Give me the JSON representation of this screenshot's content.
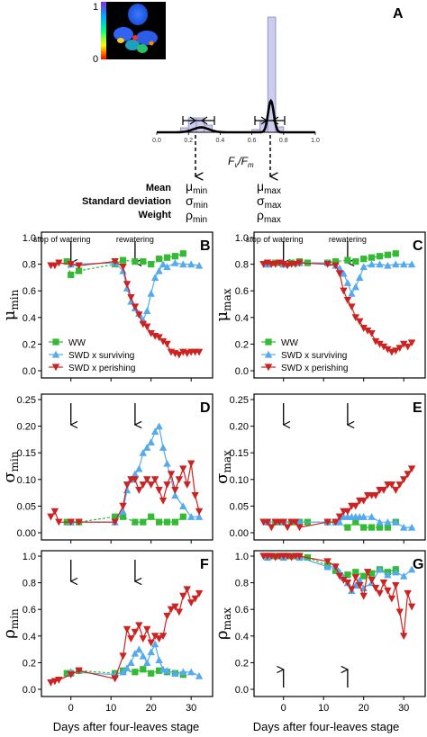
{
  "panel_a": {
    "letter": "A",
    "colorbar_top": "1",
    "colorbar_bottom": "0",
    "x_ticks": [
      "0.0",
      "0.2",
      "0.4",
      "0.6",
      "0.8",
      "1.0"
    ],
    "xlabel_main": "F",
    "xlabel_sub1": "v",
    "xlabel_slash": "/F",
    "xlabel_sub2": "m",
    "stats_left": [
      "Mean",
      "Standard deviation",
      "Weight"
    ],
    "mu_min": "μ",
    "mu_min_sub": "min",
    "sigma_min": "σ",
    "sigma_min_sub": "min",
    "rho_min": "ρ",
    "rho_min_sub": "min",
    "mu_max": "μ",
    "mu_max_sub": "max",
    "sigma_max": "σ",
    "sigma_max_sub": "max",
    "rho_max": "ρ",
    "rho_max_sub": "max"
  },
  "legend": {
    "ww": "WW",
    "surv": "SWD x surviving",
    "per": "SWD x perishing"
  },
  "annotations": {
    "stop": "stop of watering",
    "rewater": "rewatering"
  },
  "xlabel": "Days after four-leaves stage",
  "x_ticks": [
    "0",
    "10",
    "20",
    "30"
  ],
  "colors": {
    "ww": "#33bb33",
    "surv": "#55aaee",
    "per": "#cc2222",
    "hist": "#ccccee"
  },
  "chart_data": [
    {
      "type": "line",
      "panel": "B",
      "ylabel": "μ",
      "ylabel_sub": "min",
      "ylim": [
        0.0,
        1.0
      ],
      "y_ticks": [
        "0.0",
        "0.2",
        "0.4",
        "0.6",
        "0.8",
        "1.0"
      ],
      "xlim": [
        -6,
        34
      ],
      "series": [
        {
          "name": "WW",
          "x": [
            -1,
            0,
            2,
            11,
            13,
            16,
            18,
            20,
            22,
            24,
            26,
            28
          ],
          "y": [
            0.82,
            0.72,
            0.75,
            0.8,
            0.83,
            0.82,
            0.82,
            0.8,
            0.84,
            0.85,
            0.86,
            0.88
          ]
        },
        {
          "name": "SWD x surviving",
          "x": [
            0,
            11,
            13,
            14,
            15,
            16,
            17,
            18,
            19,
            20,
            21,
            22,
            23,
            24,
            26,
            28,
            30,
            32
          ],
          "y": [
            0.8,
            0.81,
            0.75,
            0.62,
            0.52,
            0.47,
            0.43,
            0.38,
            0.45,
            0.58,
            0.7,
            0.75,
            0.8,
            0.78,
            0.81,
            0.8,
            0.8,
            0.79
          ]
        },
        {
          "name": "SWD x perishing",
          "x": [
            -5,
            -4,
            -3,
            0,
            2,
            11,
            13,
            14,
            15,
            16,
            17,
            18,
            19,
            20,
            21,
            22,
            23,
            24,
            25,
            26,
            27,
            28,
            29,
            30,
            31,
            32
          ],
          "y": [
            0.79,
            0.79,
            0.81,
            0.8,
            0.79,
            0.82,
            0.78,
            0.65,
            0.55,
            0.48,
            0.42,
            0.35,
            0.33,
            0.28,
            0.26,
            0.25,
            0.22,
            0.2,
            0.14,
            0.13,
            0.12,
            0.14,
            0.13,
            0.14,
            0.14,
            0.14
          ]
        }
      ]
    },
    {
      "type": "line",
      "panel": "C",
      "ylabel": "μ",
      "ylabel_sub": "max",
      "ylim": [
        0.0,
        1.0
      ],
      "y_ticks": [
        "0.0",
        "0.2",
        "0.4",
        "0.6",
        "0.8",
        "1.0"
      ],
      "xlim": [
        -6,
        34
      ],
      "series": [
        {
          "name": "WW",
          "x": [
            -4,
            -2,
            0,
            2,
            4,
            6,
            11,
            13,
            16,
            18,
            20,
            22,
            24,
            26,
            28
          ],
          "y": [
            0.8,
            0.81,
            0.8,
            0.81,
            0.82,
            0.81,
            0.81,
            0.82,
            0.83,
            0.82,
            0.84,
            0.85,
            0.86,
            0.87,
            0.88
          ]
        },
        {
          "name": "SWD x surviving",
          "x": [
            -4,
            0,
            4,
            11,
            13,
            14,
            15,
            16,
            17,
            18,
            19,
            20,
            22,
            24,
            26,
            28,
            30,
            32
          ],
          "y": [
            0.8,
            0.8,
            0.81,
            0.81,
            0.79,
            0.77,
            0.73,
            0.66,
            0.58,
            0.63,
            0.7,
            0.78,
            0.8,
            0.8,
            0.79,
            0.8,
            0.8,
            0.8
          ]
        },
        {
          "name": "SWD x perishing",
          "x": [
            -5,
            -4,
            -3,
            -2,
            -1,
            0,
            1,
            2,
            3,
            4,
            11,
            13,
            14,
            15,
            16,
            17,
            18,
            19,
            20,
            21,
            22,
            23,
            24,
            25,
            26,
            27,
            28,
            29,
            30,
            31,
            32
          ],
          "y": [
            0.8,
            0.81,
            0.8,
            0.8,
            0.81,
            0.8,
            0.79,
            0.8,
            0.8,
            0.81,
            0.8,
            0.79,
            0.73,
            0.6,
            0.53,
            0.48,
            0.4,
            0.37,
            0.32,
            0.3,
            0.28,
            0.22,
            0.2,
            0.18,
            0.16,
            0.14,
            0.15,
            0.17,
            0.2,
            0.18,
            0.21
          ]
        }
      ]
    },
    {
      "type": "line",
      "panel": "D",
      "ylabel": "σ",
      "ylabel_sub": "min",
      "ylim": [
        0.0,
        0.25
      ],
      "y_ticks": [
        "0.00",
        "0.05",
        "0.10",
        "0.15",
        "0.20",
        "0.25"
      ],
      "xlim": [
        -6,
        34
      ],
      "series": [
        {
          "name": "WW",
          "x": [
            -1,
            0,
            2,
            11,
            13,
            16,
            18,
            20,
            22,
            24,
            26,
            28
          ],
          "y": [
            0.02,
            0.02,
            0.02,
            0.03,
            0.03,
            0.02,
            0.02,
            0.03,
            0.02,
            0.02,
            0.02,
            0.03
          ]
        },
        {
          "name": "SWD x surviving",
          "x": [
            0,
            11,
            13,
            14,
            15,
            16,
            17,
            18,
            19,
            20,
            21,
            22,
            23,
            24,
            26,
            28,
            30,
            32
          ],
          "y": [
            0.02,
            0.02,
            0.04,
            0.08,
            0.1,
            0.11,
            0.12,
            0.15,
            0.16,
            0.17,
            0.19,
            0.2,
            0.16,
            0.13,
            0.07,
            0.05,
            0.03,
            0.03
          ]
        },
        {
          "name": "SWD x perishing",
          "x": [
            -5,
            -4,
            -3,
            0,
            2,
            11,
            13,
            14,
            15,
            16,
            17,
            18,
            19,
            20,
            21,
            22,
            23,
            24,
            25,
            26,
            27,
            28,
            29,
            30,
            31,
            32
          ],
          "y": [
            0.03,
            0.04,
            0.02,
            0.02,
            0.02,
            0.02,
            0.05,
            0.09,
            0.1,
            0.1,
            0.08,
            0.09,
            0.1,
            0.09,
            0.1,
            0.08,
            0.06,
            0.09,
            0.11,
            0.08,
            0.1,
            0.12,
            0.09,
            0.13,
            0.07,
            0.04
          ]
        }
      ]
    },
    {
      "type": "line",
      "panel": "E",
      "ylabel": "σ",
      "ylabel_sub": "max",
      "ylim": [
        0.0,
        0.25
      ],
      "y_ticks": [
        "0.00",
        "0.05",
        "0.10",
        "0.15",
        "0.20",
        "0.25"
      ],
      "xlim": [
        -6,
        34
      ],
      "series": [
        {
          "name": "WW",
          "x": [
            -4,
            -2,
            0,
            2,
            4,
            6,
            11,
            13,
            16,
            18,
            20,
            22,
            24,
            26,
            28
          ],
          "y": [
            0.02,
            0.02,
            0.02,
            0.02,
            0.02,
            0.02,
            0.02,
            0.02,
            0.01,
            0.02,
            0.01,
            0.01,
            0.01,
            0.01,
            0.02
          ]
        },
        {
          "name": "SWD x surviving",
          "x": [
            -4,
            0,
            4,
            11,
            13,
            14,
            15,
            16,
            17,
            18,
            19,
            20,
            22,
            24,
            26,
            28,
            30,
            32
          ],
          "y": [
            0.02,
            0.02,
            0.02,
            0.02,
            0.02,
            0.02,
            0.03,
            0.03,
            0.03,
            0.03,
            0.03,
            0.03,
            0.03,
            0.02,
            0.02,
            0.02,
            0.01,
            0.01
          ]
        },
        {
          "name": "SWD x perishing",
          "x": [
            -5,
            -4,
            -3,
            -2,
            -1,
            0,
            1,
            2,
            3,
            4,
            11,
            13,
            14,
            15,
            16,
            17,
            18,
            19,
            20,
            21,
            22,
            23,
            24,
            25,
            26,
            27,
            28,
            29,
            30,
            31,
            32
          ],
          "y": [
            0.02,
            0.02,
            0.01,
            0.02,
            0.02,
            0.02,
            0.01,
            0.02,
            0.02,
            0.01,
            0.02,
            0.02,
            0.03,
            0.04,
            0.04,
            0.05,
            0.05,
            0.06,
            0.06,
            0.07,
            0.07,
            0.07,
            0.08,
            0.08,
            0.09,
            0.09,
            0.08,
            0.09,
            0.1,
            0.11,
            0.12
          ]
        }
      ]
    },
    {
      "type": "line",
      "panel": "F",
      "ylabel": "ρ",
      "ylabel_sub": "min",
      "ylim": [
        0.0,
        1.0
      ],
      "y_ticks": [
        "0.0",
        "0.2",
        "0.4",
        "0.6",
        "0.8",
        "1.0"
      ],
      "xlim": [
        -6,
        34
      ],
      "series": [
        {
          "name": "WW",
          "x": [
            -1,
            0,
            2,
            11,
            13,
            16,
            18,
            20,
            22,
            24,
            26,
            28
          ],
          "y": [
            0.12,
            0.12,
            0.14,
            0.12,
            0.14,
            0.13,
            0.15,
            0.12,
            0.14,
            0.13,
            0.12,
            0.11
          ]
        },
        {
          "name": "SWD x surviving",
          "x": [
            0,
            11,
            13,
            14,
            15,
            16,
            17,
            18,
            19,
            20,
            21,
            22,
            23,
            24,
            26,
            28,
            30,
            32
          ],
          "y": [
            0.13,
            0.11,
            0.13,
            0.16,
            0.2,
            0.27,
            0.3,
            0.25,
            0.2,
            0.28,
            0.34,
            0.22,
            0.15,
            0.14,
            0.12,
            0.13,
            0.13,
            0.1
          ]
        },
        {
          "name": "SWD x perishing",
          "x": [
            -5,
            -4,
            -3,
            0,
            2,
            11,
            13,
            14,
            15,
            16,
            17,
            18,
            19,
            20,
            21,
            22,
            23,
            24,
            25,
            26,
            27,
            28,
            29,
            30,
            31,
            32
          ],
          "y": [
            0.05,
            0.06,
            0.07,
            0.11,
            0.14,
            0.08,
            0.25,
            0.45,
            0.38,
            0.43,
            0.48,
            0.38,
            0.45,
            0.35,
            0.4,
            0.38,
            0.4,
            0.55,
            0.6,
            0.62,
            0.58,
            0.7,
            0.75,
            0.65,
            0.68,
            0.72
          ]
        }
      ]
    },
    {
      "type": "line",
      "panel": "G",
      "ylabel": "ρ",
      "ylabel_sub": "max",
      "ylim": [
        0.0,
        1.0
      ],
      "y_ticks": [
        "0.0",
        "0.2",
        "0.4",
        "0.6",
        "0.8",
        "1.0"
      ],
      "xlim": [
        -6,
        34
      ],
      "series": [
        {
          "name": "WW",
          "x": [
            -4,
            -2,
            0,
            2,
            4,
            6,
            11,
            13,
            16,
            18,
            20,
            22,
            24,
            26,
            28
          ],
          "y": [
            1.0,
            1.0,
            1.0,
            1.0,
            0.99,
            0.99,
            0.93,
            0.89,
            0.86,
            0.88,
            0.85,
            0.87,
            0.9,
            0.88,
            0.9
          ]
        },
        {
          "name": "SWD x surviving",
          "x": [
            -4,
            0,
            4,
            11,
            13,
            14,
            15,
            16,
            17,
            18,
            19,
            20,
            22,
            24,
            26,
            28,
            30,
            32
          ],
          "y": [
            0.99,
            0.99,
            0.99,
            0.92,
            0.92,
            0.88,
            0.84,
            0.8,
            0.74,
            0.78,
            0.82,
            0.76,
            0.8,
            0.9,
            0.86,
            0.88,
            0.85,
            0.9
          ]
        },
        {
          "name": "SWD x perishing",
          "x": [
            -5,
            -4,
            -3,
            -2,
            -1,
            0,
            1,
            2,
            3,
            4,
            11,
            13,
            14,
            15,
            16,
            17,
            18,
            19,
            20,
            21,
            22,
            23,
            24,
            25,
            26,
            27,
            28,
            29,
            30,
            31,
            32
          ],
          "y": [
            1.0,
            1.0,
            1.0,
            0.99,
            1.0,
            1.0,
            1.0,
            0.99,
            1.0,
            1.0,
            0.96,
            0.92,
            0.85,
            0.82,
            0.8,
            0.75,
            0.84,
            0.78,
            0.7,
            0.88,
            0.82,
            0.76,
            0.72,
            0.8,
            0.74,
            0.68,
            0.78,
            0.58,
            0.4,
            0.72,
            0.62
          ]
        }
      ]
    }
  ]
}
